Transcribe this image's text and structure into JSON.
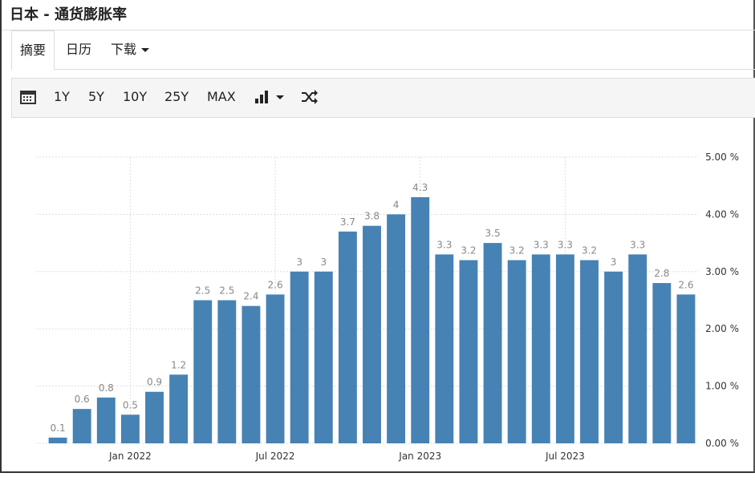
{
  "header": {
    "title": "日本 - 通货膨胀率"
  },
  "tabs": [
    "摘要",
    "日历",
    "下载"
  ],
  "toolbar": [
    "1Y",
    "5Y",
    "10Y",
    "25Y",
    "MAX"
  ],
  "chart_data": {
    "type": "bar",
    "categories": [
      null,
      null,
      null,
      "Jan 2022",
      null,
      null,
      null,
      null,
      null,
      "Jul 2022",
      null,
      null,
      null,
      null,
      null,
      "Jan 2023",
      null,
      null,
      null,
      null,
      null,
      "Jul 2023",
      null,
      null,
      null,
      null,
      null
    ],
    "values": [
      0.1,
      0.6,
      0.8,
      0.5,
      0.9,
      1.2,
      2.5,
      2.5,
      2.4,
      2.6,
      3,
      3,
      3.7,
      3.8,
      4,
      4.3,
      3.3,
      3.2,
      3.5,
      3.2,
      3.3,
      3.3,
      3.2,
      3,
      3.3,
      2.8,
      2.6
    ],
    "color": "#4682b4",
    "ylim": [
      0,
      5
    ],
    "yticks": [
      {
        "value": 0,
        "label": "0.00 %"
      },
      {
        "value": 1,
        "label": "1.00 %"
      },
      {
        "value": 2,
        "label": "2.00 %"
      },
      {
        "value": 3,
        "label": "3.00 %"
      },
      {
        "value": 4,
        "label": "4.00 %"
      },
      {
        "value": 5,
        "label": "5.00 %"
      }
    ],
    "grid": true
  }
}
